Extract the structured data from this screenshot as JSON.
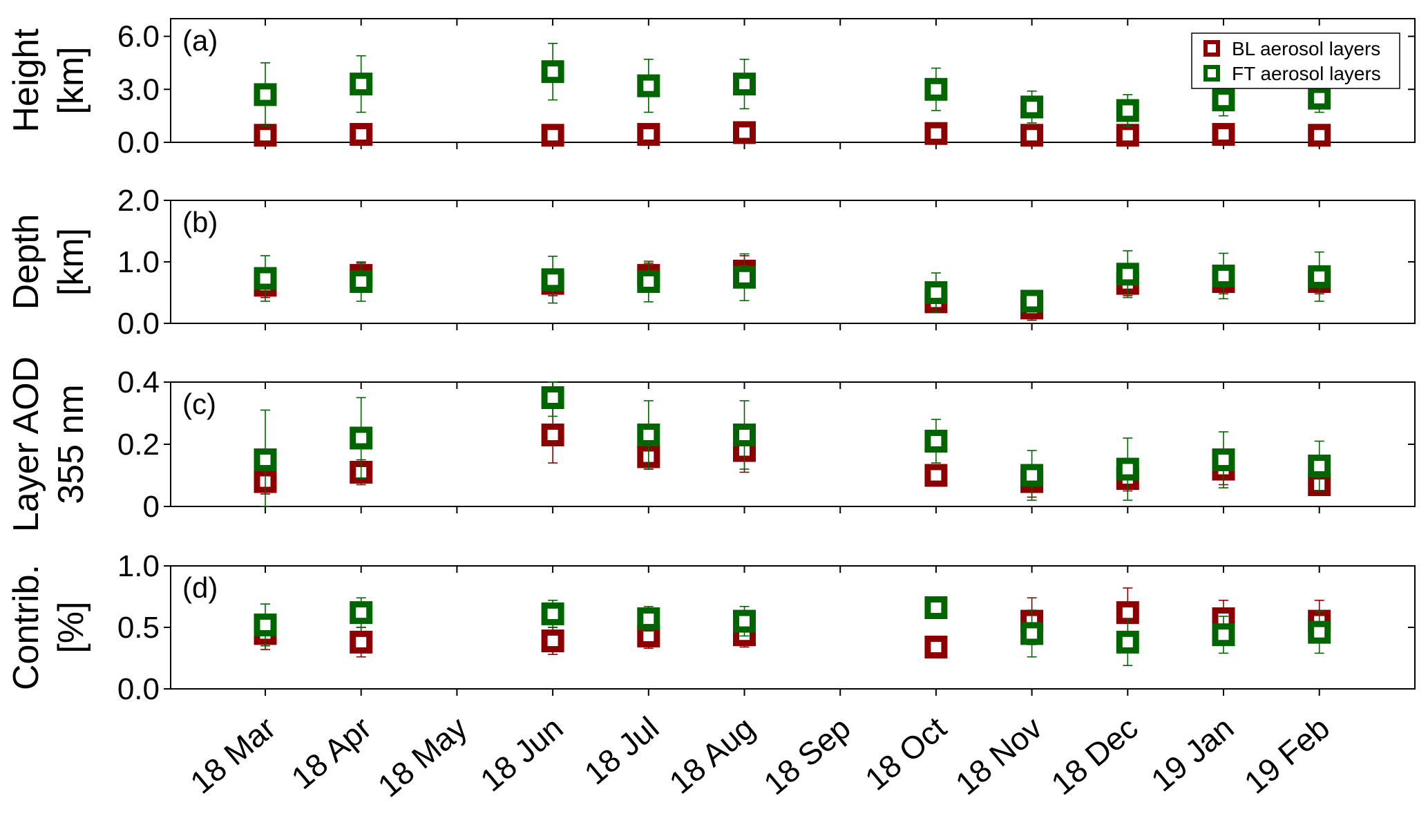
{
  "chart_data": {
    "type": "scatter",
    "categories": [
      "18 Mar",
      "18 Apr",
      "18 May",
      "18 Jun",
      "18 Jul",
      "18 Aug",
      "18 Sep",
      "18 Oct",
      "18 Nov",
      "18 Dec",
      "19 Jan",
      "19 Feb"
    ],
    "legend": {
      "placement": "top-right",
      "entries": [
        {
          "name": "BL aerosol layers",
          "color": "#8b0000"
        },
        {
          "name": "FT aerosol layers",
          "color": "#006400"
        }
      ]
    },
    "panels": [
      {
        "label": "(a)",
        "ylabel_lines": [
          "Height",
          "[km]"
        ],
        "ylim": [
          0,
          7
        ],
        "yticks": [
          0,
          3,
          6
        ],
        "yticklabels": [
          "0.0",
          "3.0",
          "6.0"
        ],
        "series": [
          {
            "name": "BL aerosol layers",
            "color": "#8b0000",
            "values": [
              0.4,
              0.45,
              null,
              0.4,
              0.45,
              0.55,
              null,
              0.5,
              0.4,
              0.4,
              0.45,
              0.4
            ],
            "errors": [
              0.1,
              0.1,
              null,
              0.1,
              0.1,
              0.1,
              null,
              0.1,
              0.1,
              0.1,
              0.1,
              0.1
            ]
          },
          {
            "name": "FT aerosol layers",
            "color": "#006400",
            "values": [
              2.7,
              3.3,
              null,
              4.0,
              3.2,
              3.3,
              null,
              3.0,
              2.0,
              1.8,
              2.4,
              2.5
            ],
            "errors": [
              1.8,
              1.6,
              null,
              1.6,
              1.5,
              1.4,
              null,
              1.2,
              0.9,
              0.9,
              0.9,
              0.8
            ]
          }
        ]
      },
      {
        "label": "(b)",
        "ylabel_lines": [
          "Depth",
          "[km]"
        ],
        "ylim": [
          0,
          2
        ],
        "yticks": [
          0,
          1,
          2
        ],
        "yticklabels": [
          "0.0",
          "1.0",
          "2.0"
        ],
        "series": [
          {
            "name": "BL aerosol layers",
            "color": "#8b0000",
            "values": [
              0.62,
              0.78,
              null,
              0.65,
              0.78,
              0.85,
              null,
              0.35,
              0.25,
              0.65,
              0.68,
              0.68
            ],
            "errors": [
              0.2,
              0.2,
              null,
              0.2,
              0.2,
              0.25,
              null,
              0.15,
              0.2,
              0.2,
              0.2,
              0.2
            ]
          },
          {
            "name": "FT aerosol layers",
            "color": "#006400",
            "values": [
              0.73,
              0.68,
              null,
              0.71,
              0.68,
              0.75,
              null,
              0.5,
              0.36,
              0.8,
              0.77,
              0.76
            ],
            "errors": [
              0.37,
              0.32,
              null,
              0.38,
              0.33,
              0.38,
              null,
              0.32,
              0.16,
              0.38,
              0.37,
              0.4
            ]
          }
        ]
      },
      {
        "label": "(c)",
        "ylabel_lines": [
          "Layer AOD",
          "355 nm"
        ],
        "ylim": [
          0,
          0.4
        ],
        "yticks": [
          0,
          0.2,
          0.4
        ],
        "yticklabels": [
          "0",
          "0.2",
          "0.4"
        ],
        "series": [
          {
            "name": "BL aerosol layers",
            "color": "#8b0000",
            "values": [
              0.08,
              0.11,
              null,
              0.23,
              0.16,
              0.18,
              null,
              0.1,
              0.08,
              0.09,
              0.12,
              0.07
            ],
            "errors": [
              0.04,
              0.04,
              null,
              0.09,
              0.04,
              0.07,
              null,
              0.02,
              0.05,
              0.04,
              0.05,
              0.03
            ]
          },
          {
            "name": "FT aerosol layers",
            "color": "#006400",
            "values": [
              0.15,
              0.22,
              null,
              0.35,
              0.23,
              0.23,
              null,
              0.21,
              0.1,
              0.12,
              0.15,
              0.13
            ],
            "errors": [
              0.16,
              0.13,
              null,
              0.06,
              0.11,
              0.11,
              null,
              0.07,
              0.08,
              0.1,
              0.09,
              0.08
            ]
          }
        ]
      },
      {
        "label": "(d)",
        "ylabel_lines": [
          "Contrib.",
          "[%]"
        ],
        "ylim": [
          0,
          1
        ],
        "yticks": [
          0,
          0.5,
          1
        ],
        "yticklabels": [
          "0.0",
          "0.5",
          "1.0"
        ],
        "series": [
          {
            "name": "BL aerosol layers",
            "color": "#8b0000",
            "values": [
              0.45,
              0.38,
              null,
              0.39,
              0.43,
              0.44,
              null,
              0.34,
              0.55,
              0.62,
              0.57,
              0.55
            ],
            "errors": [
              0.13,
              0.12,
              null,
              0.11,
              0.1,
              0.1,
              null,
              0.05,
              0.19,
              0.2,
              0.15,
              0.17
            ]
          },
          {
            "name": "FT aerosol layers",
            "color": "#006400",
            "values": [
              0.52,
              0.62,
              null,
              0.61,
              0.57,
              0.55,
              null,
              0.66,
              0.45,
              0.38,
              0.44,
              0.46
            ],
            "errors": [
              0.17,
              0.12,
              null,
              0.11,
              0.1,
              0.12,
              null,
              0.05,
              0.19,
              0.19,
              0.15,
              0.17
            ]
          }
        ]
      }
    ]
  }
}
